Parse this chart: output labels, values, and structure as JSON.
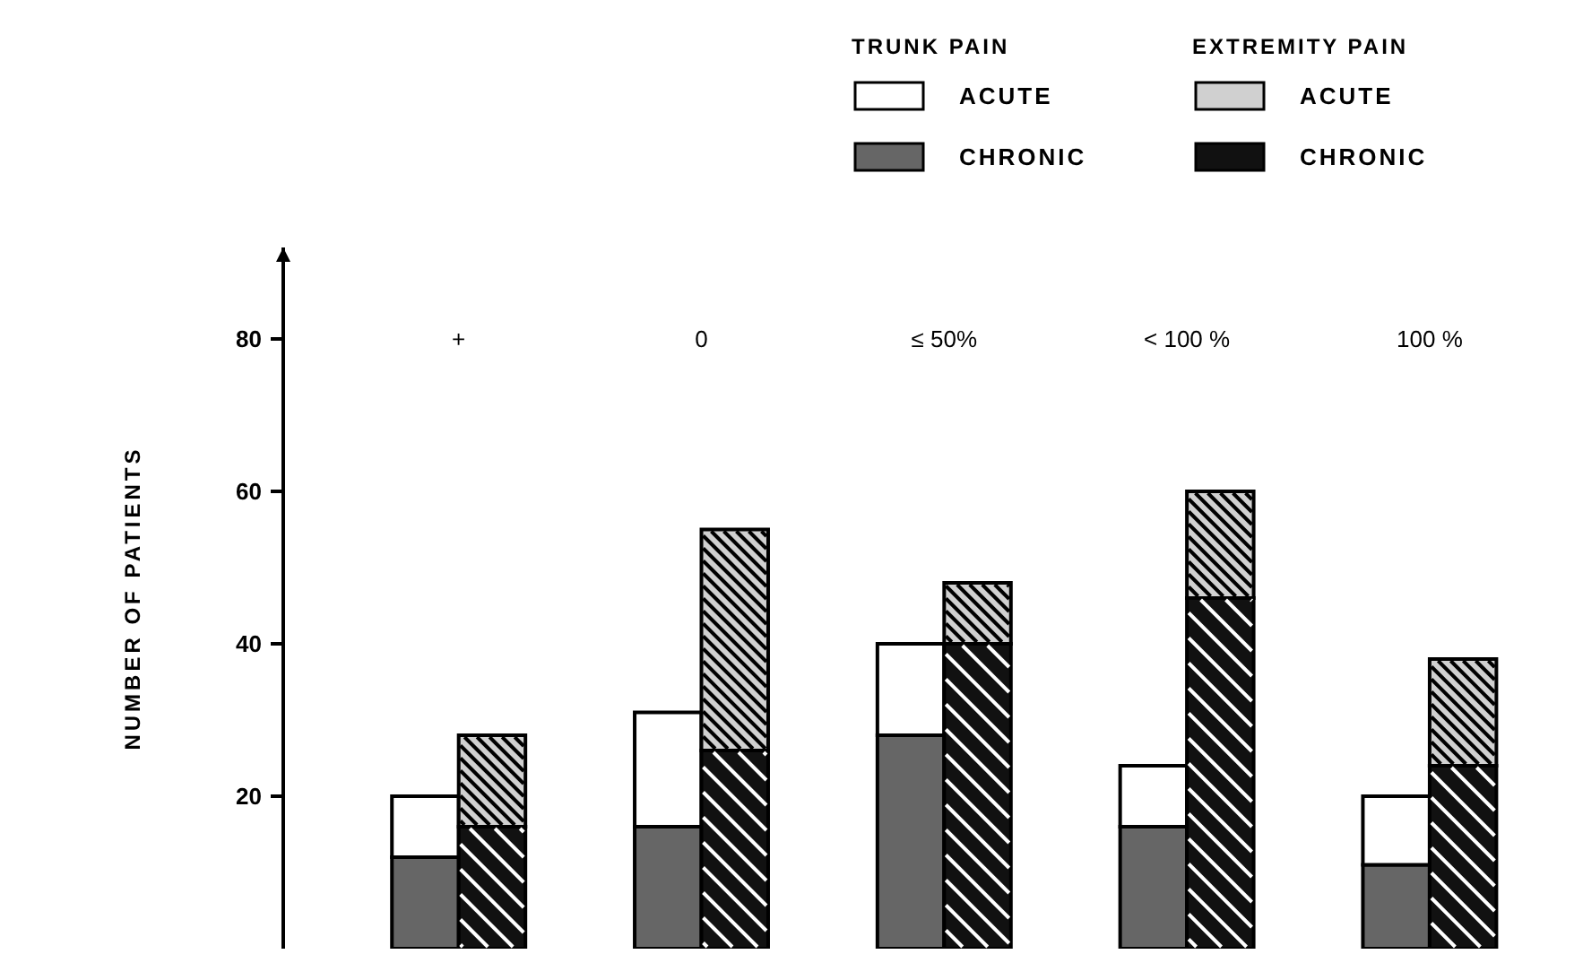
{
  "chart_data": {
    "type": "bar",
    "stacked": true,
    "ylabel": "NUMBER OF PATIENTS",
    "categories": [
      null,
      null,
      null,
      null,
      null,
      null,
      null,
      null,
      null,
      null
    ],
    "ylim": [
      0,
      92
    ],
    "yticks": [
      20,
      40,
      60,
      80
    ],
    "legend": "top right",
    "annotations": [
      "+",
      "0",
      "≤ 50%",
      "< 100 %",
      "100 %",
      "TRUNK PAIN",
      "EXTREMITY PAIN"
    ],
    "series": [
      {
        "name": "CHRONIC",
        "color": "#666666",
        "values": [
          12,
          null,
          16,
          null,
          28,
          null,
          16,
          null,
          11,
          null
        ]
      },
      {
        "name": "ACUTE",
        "color": "#ffffff",
        "values": [
          8,
          null,
          15,
          null,
          12,
          null,
          8,
          null,
          9,
          null
        ]
      },
      {
        "name": "CHRONIC",
        "color": "#111111",
        "values": [
          null,
          16,
          null,
          26,
          null,
          40,
          null,
          46,
          null,
          24
        ]
      },
      {
        "name": "ACUTE",
        "color": "#d0d0d0",
        "values": [
          null,
          12,
          null,
          29,
          null,
          8,
          null,
          14,
          null,
          14
        ]
      }
    ]
  }
}
